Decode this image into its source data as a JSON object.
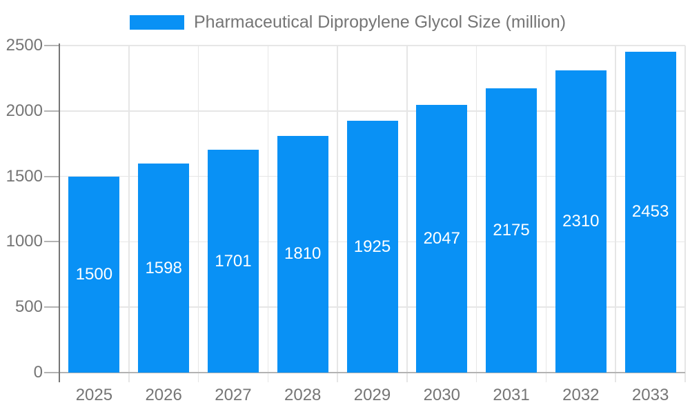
{
  "chart_data": {
    "type": "bar",
    "title": "Pharmaceutical Dipropylene Glycol Size (million)",
    "categories": [
      "2025",
      "2026",
      "2027",
      "2028",
      "2029",
      "2030",
      "2031",
      "2032",
      "2033"
    ],
    "values": [
      1500,
      1598,
      1701,
      1810,
      1925,
      2047,
      2175,
      2310,
      2453
    ],
    "xlabel": "",
    "ylabel": "",
    "ylim": [
      0,
      2500
    ],
    "yticks": [
      0,
      500,
      1000,
      1500,
      2000,
      2500
    ],
    "grid": "on",
    "legend_position": "top",
    "value_label_position": "inside-center",
    "colors": {
      "bar": "#0991f5",
      "value_label": "#ffffff",
      "axis_text": "#757575",
      "title_text": "#757575",
      "grid_line": "#e6e6e6",
      "axis_line": "#757575",
      "baseline": "#b3b3b3"
    }
  }
}
